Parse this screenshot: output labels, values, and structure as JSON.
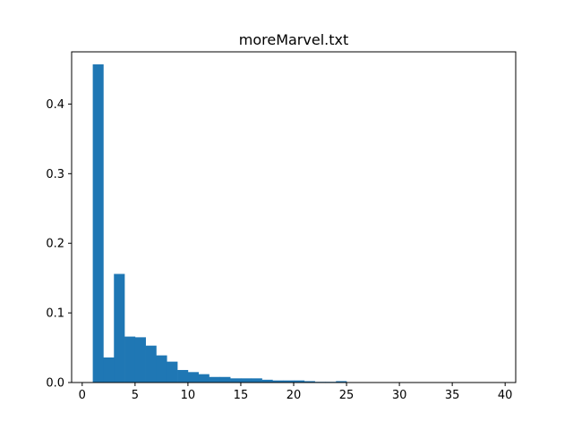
{
  "chart_data": {
    "type": "bar",
    "title": "moreMarvel.txt",
    "xlabel": "",
    "ylabel": "",
    "xlim": [
      -1,
      41
    ],
    "ylim": [
      0,
      0.475
    ],
    "x_ticks": [
      0,
      5,
      10,
      15,
      20,
      25,
      30,
      35,
      40
    ],
    "y_ticks": [
      0.0,
      0.1,
      0.2,
      0.3,
      0.4
    ],
    "x_tick_labels": [
      "0",
      "5",
      "10",
      "15",
      "20",
      "25",
      "30",
      "35",
      "40"
    ],
    "y_tick_labels": [
      "0.0",
      "0.1",
      "0.2",
      "0.3",
      "0.4"
    ],
    "bar_color": "#1f77b4",
    "bins": [
      {
        "start": 1,
        "end": 2,
        "value": 0.457
      },
      {
        "start": 2,
        "end": 3,
        "value": 0.036
      },
      {
        "start": 3,
        "end": 4,
        "value": 0.156
      },
      {
        "start": 4,
        "end": 5,
        "value": 0.066
      },
      {
        "start": 5,
        "end": 6,
        "value": 0.065
      },
      {
        "start": 6,
        "end": 7,
        "value": 0.053
      },
      {
        "start": 7,
        "end": 8,
        "value": 0.039
      },
      {
        "start": 8,
        "end": 9,
        "value": 0.03
      },
      {
        "start": 9,
        "end": 10,
        "value": 0.018
      },
      {
        "start": 10,
        "end": 11,
        "value": 0.015
      },
      {
        "start": 11,
        "end": 12,
        "value": 0.012
      },
      {
        "start": 12,
        "end": 13,
        "value": 0.008
      },
      {
        "start": 13,
        "end": 14,
        "value": 0.008
      },
      {
        "start": 14,
        "end": 15,
        "value": 0.006
      },
      {
        "start": 15,
        "end": 16,
        "value": 0.006
      },
      {
        "start": 16,
        "end": 17,
        "value": 0.006
      },
      {
        "start": 17,
        "end": 18,
        "value": 0.004
      },
      {
        "start": 18,
        "end": 19,
        "value": 0.003
      },
      {
        "start": 19,
        "end": 20,
        "value": 0.003
      },
      {
        "start": 20,
        "end": 21,
        "value": 0.003
      },
      {
        "start": 21,
        "end": 22,
        "value": 0.002
      },
      {
        "start": 22,
        "end": 23,
        "value": 0.001
      },
      {
        "start": 23,
        "end": 24,
        "value": 0.001
      },
      {
        "start": 24,
        "end": 25,
        "value": 0.002
      },
      {
        "start": 25,
        "end": 26,
        "value": 0.0005
      },
      {
        "start": 26,
        "end": 27,
        "value": 0.0004
      },
      {
        "start": 27,
        "end": 28,
        "value": 0.0003
      },
      {
        "start": 28,
        "end": 29,
        "value": 0.0003
      },
      {
        "start": 29,
        "end": 30,
        "value": 0.0002
      },
      {
        "start": 30,
        "end": 31,
        "value": 0.0002
      },
      {
        "start": 31,
        "end": 32,
        "value": 0.0002
      },
      {
        "start": 32,
        "end": 33,
        "value": 0.0001
      },
      {
        "start": 33,
        "end": 34,
        "value": 0.0001
      },
      {
        "start": 34,
        "end": 35,
        "value": 0.0001
      },
      {
        "start": 35,
        "end": 36,
        "value": 0.0001
      },
      {
        "start": 36,
        "end": 37,
        "value": 0.0001
      },
      {
        "start": 37,
        "end": 38,
        "value": 0.0001
      },
      {
        "start": 38,
        "end": 39,
        "value": 0.0001
      }
    ]
  }
}
